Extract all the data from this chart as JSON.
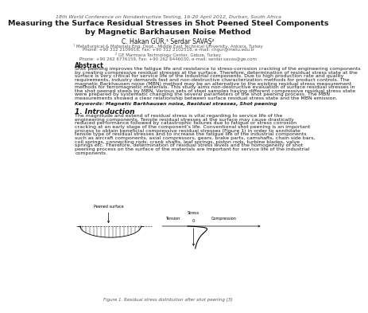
{
  "header": "18th World Conference on Nondestructive Testing, 16-20 April 2012, Durban, South Africa",
  "title_line1": "Measuring the Surface Residual Stresses in Shot Peened Steel Components",
  "title_line2": "by Magnetic Barkhausen Noise Method",
  "authors": "C. Hakan GÜR,¹ Serdar SAVAŞ²",
  "affil1a": "¹ Metallurgical & Materials Eng. Dept., Middle East Technical University, Ankara, Turkey",
  "affil1b": "Phone: +90 312 2109916, Fax: +90 312 2102518, e-mail: chgur@metu.edu.tr",
  "affil2a": "² GE Marmara Technology Center, Gebze, Turkey",
  "affil2b": "Phone: +90 262 6776159, Fax: +90 262 6446030, e-mail: serdar.savas@ge.com",
  "abstract_title": "Abstract",
  "abstract_lines": [
    "Shot peening improves the fatigue life and resistance to stress-corrosion cracking of the engineering components",
    "by creating compressive residual stresses at the surface. Therefore, determination of residual stress state at the",
    "surface is very critical for service life of the industrial components. Due to high production rate and quality",
    "requirements, industry demands fast and non-destructive characterization methods for product controls. The",
    "magnetic Barkhausen noise (MBN) method may be an alternative to the existing residual stress measurement",
    "methods for ferromagnetic materials. This study aims non-destructive evaluation of surface residual stresses in",
    "the shot peened steels by MBN. Various sets of steel samples having different compressive residual stress state",
    "were prepared by systematic changing the several parameters of the shot peening process. The MBN",
    "measurements showed a clear relationship between surface residual stress state and the MBN emission."
  ],
  "keywords": "Keywords: Magnetic Barkhausen noise, Residual stresses, Shot peening",
  "section1_title": "1. Introduction",
  "section1_lines": [
    "The magnitude and extend of residual stress is vital regarding to service life of the",
    "engineering components. Tensile residual stresses at the surface may cause drastically",
    "reduced performance followed by catastrophic failures due to fatigue or stress corrosion",
    "cracking at an early stage of the component’s life. Conventional shot peening is an important",
    "process to obtain beneficial compressive residual stresses (Figure 1) in order to annihilate",
    "tensile type of residual stresses and to increase the fatigue life of the industrial components",
    "such as aircraft components, axial compressors, gears, brake parts, camshafts, chain side bars,",
    "coil springs, connecting rods, crank shafts, leaf springs, piston rods, turbine blades, valve",
    "springs etc. Therefore, determination of residual stress levels and the homogeneity of shot",
    "peening process on the surface of the materials are important for service life of the industrial",
    "components."
  ],
  "fig_caption": "Figure 1. Residual stress distribution after shot peening [3]",
  "bg_color": "#ffffff",
  "text_color": "#1a1a1a",
  "gray_color": "#555555",
  "header_fs": 4.5,
  "title_fs": 6.8,
  "author_fs": 5.5,
  "affil_fs": 4.0,
  "abstract_title_fs": 5.5,
  "body_fs": 4.5,
  "keywords_fs": 4.5,
  "section_title_fs": 6.5,
  "caption_fs": 4.0
}
